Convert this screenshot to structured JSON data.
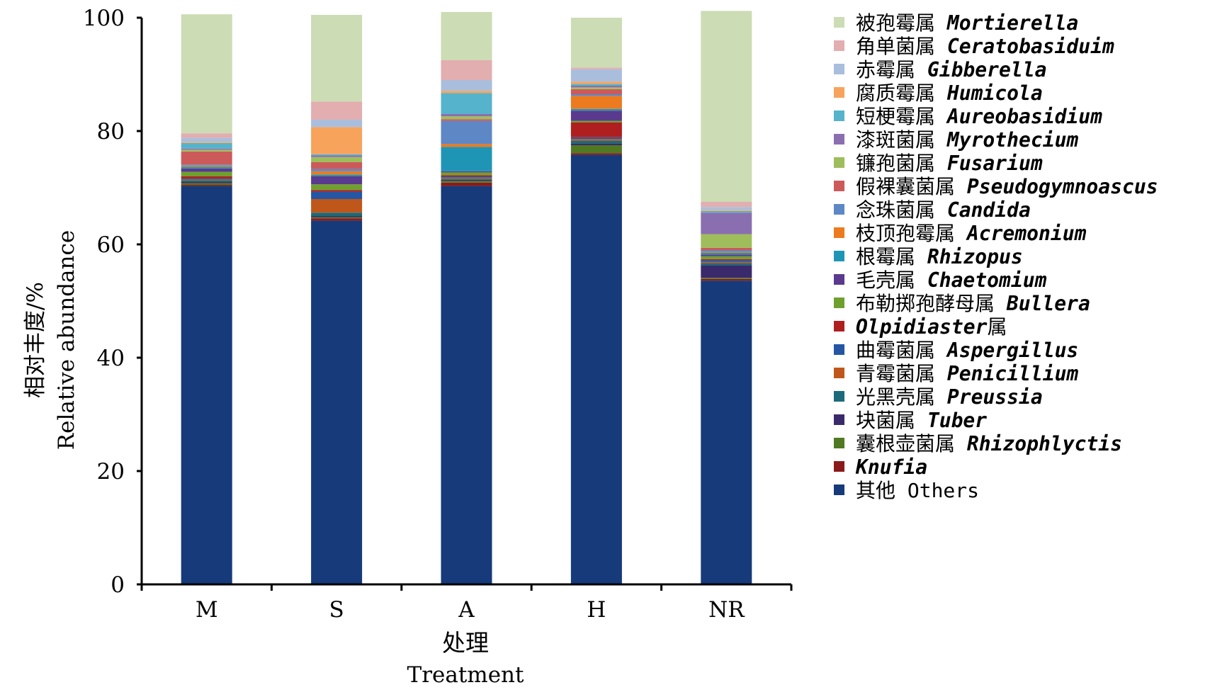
{
  "chart_data": {
    "type": "bar",
    "stacked": true,
    "categories": [
      "M",
      "S",
      "A",
      "H",
      "NR"
    ],
    "ylim": [
      0,
      100
    ],
    "yticks": [
      0,
      20,
      40,
      60,
      80,
      100
    ],
    "ylabel_cn": "相对丰度/%",
    "ylabel_en": "Relative abundance",
    "xlabel_cn": "处理",
    "xlabel_en": "Treatment",
    "grid": false,
    "legend_position": "right",
    "series": [
      {
        "cn": "其他",
        "en": "Others",
        "italic": false,
        "color": "#163A7A",
        "values": [
          70.3,
          64.2,
          70.3,
          75.8,
          53.6
        ]
      },
      {
        "cn": "",
        "en": "Knufia",
        "italic": true,
        "color": "#8B1A1A",
        "values": [
          0.2,
          0.4,
          0.6,
          0.3,
          0.3
        ]
      },
      {
        "cn": "囊根壶菌属",
        "en": "Rhizophlyctis",
        "italic": true,
        "color": "#4F7A22",
        "values": [
          0.3,
          0.2,
          0.3,
          1.4,
          0.2
        ]
      },
      {
        "cn": "块菌属",
        "en": "Tuber",
        "italic": true,
        "color": "#3B2A6B",
        "values": [
          0.2,
          0.2,
          0.2,
          0.3,
          2.2
        ]
      },
      {
        "cn": "光黑壳属",
        "en": "Preussia",
        "italic": true,
        "color": "#1D6A7A",
        "values": [
          0.3,
          0.6,
          0.2,
          0.5,
          0.4
        ]
      },
      {
        "cn": "青霉菌属",
        "en": "Penicillium",
        "italic": true,
        "color": "#C0571A",
        "values": [
          0.2,
          2.4,
          0.2,
          0.3,
          0.2
        ]
      },
      {
        "cn": "曲霉菌属",
        "en": "Aspergillus",
        "italic": true,
        "color": "#2456A4",
        "values": [
          0.2,
          1.3,
          0.2,
          0.3,
          0.3
        ]
      },
      {
        "cn": "",
        "en": "Olpidiaster",
        "suffix": "属",
        "italic": true,
        "color": "#B01F1F",
        "values": [
          0.3,
          0.3,
          0.2,
          2.6,
          0.2
        ]
      },
      {
        "cn": "布勒掷孢酵母属",
        "en": "Bullera",
        "italic": true,
        "color": "#6FA02E",
        "values": [
          0.8,
          1.0,
          0.5,
          0.3,
          0.5
        ]
      },
      {
        "cn": "毛壳属",
        "en": "Chaetomium",
        "italic": true,
        "color": "#5A3A8E",
        "values": [
          0.6,
          1.4,
          0.2,
          1.8,
          0.3
        ]
      },
      {
        "cn": "根霉属",
        "en": "Rhizopus",
        "italic": true,
        "color": "#1F95B6",
        "values": [
          0.3,
          0.3,
          4.3,
          0.3,
          0.3
        ]
      },
      {
        "cn": "枝顶孢霉属",
        "en": "Acremonium",
        "italic": true,
        "color": "#EC7A1E",
        "values": [
          0.2,
          0.6,
          0.5,
          2.3,
          0.2
        ]
      },
      {
        "cn": "念珠菌属",
        "en": "Candida",
        "italic": true,
        "color": "#5E87C5",
        "values": [
          0.2,
          0.4,
          4.1,
          0.3,
          0.3
        ]
      },
      {
        "cn": "假裸囊菌属",
        "en": "Pseudogymnoascus",
        "italic": true,
        "color": "#CC5A5A",
        "values": [
          2.3,
          1.2,
          0.3,
          0.9,
          0.4
        ]
      },
      {
        "cn": "镰孢菌属",
        "en": "Fusarium",
        "italic": true,
        "color": "#9DBE5A",
        "values": [
          0.3,
          0.9,
          0.5,
          0.3,
          2.4
        ]
      },
      {
        "cn": "漆斑菌属",
        "en": "Myrothecium",
        "italic": true,
        "color": "#8A6FB0",
        "values": [
          0.2,
          0.3,
          0.4,
          0.3,
          3.8
        ]
      },
      {
        "cn": "短梗霉属",
        "en": "Aureobasidium",
        "italic": true,
        "color": "#56B3CC",
        "values": [
          1.0,
          0.2,
          3.7,
          0.3,
          0.3
        ]
      },
      {
        "cn": "腐质霉属",
        "en": "Humicola",
        "italic": true,
        "color": "#F7A35C",
        "values": [
          0.2,
          4.8,
          0.4,
          0.4,
          0.2
        ]
      },
      {
        "cn": "赤霉属",
        "en": "Gibberella",
        "italic": true,
        "color": "#A9BEDD",
        "values": [
          0.7,
          1.3,
          1.9,
          2.2,
          0.5
        ]
      },
      {
        "cn": "角单菌属",
        "en": "Ceratobasiduim",
        "italic": true,
        "color": "#E2AEB0",
        "values": [
          0.8,
          3.2,
          3.5,
          0.3,
          0.9
        ]
      },
      {
        "cn": "被孢霉属",
        "en": "Mortierella",
        "italic": true,
        "color": "#CCDCB4",
        "values": [
          21.0,
          15.3,
          8.5,
          8.8,
          33.7
        ]
      }
    ]
  }
}
